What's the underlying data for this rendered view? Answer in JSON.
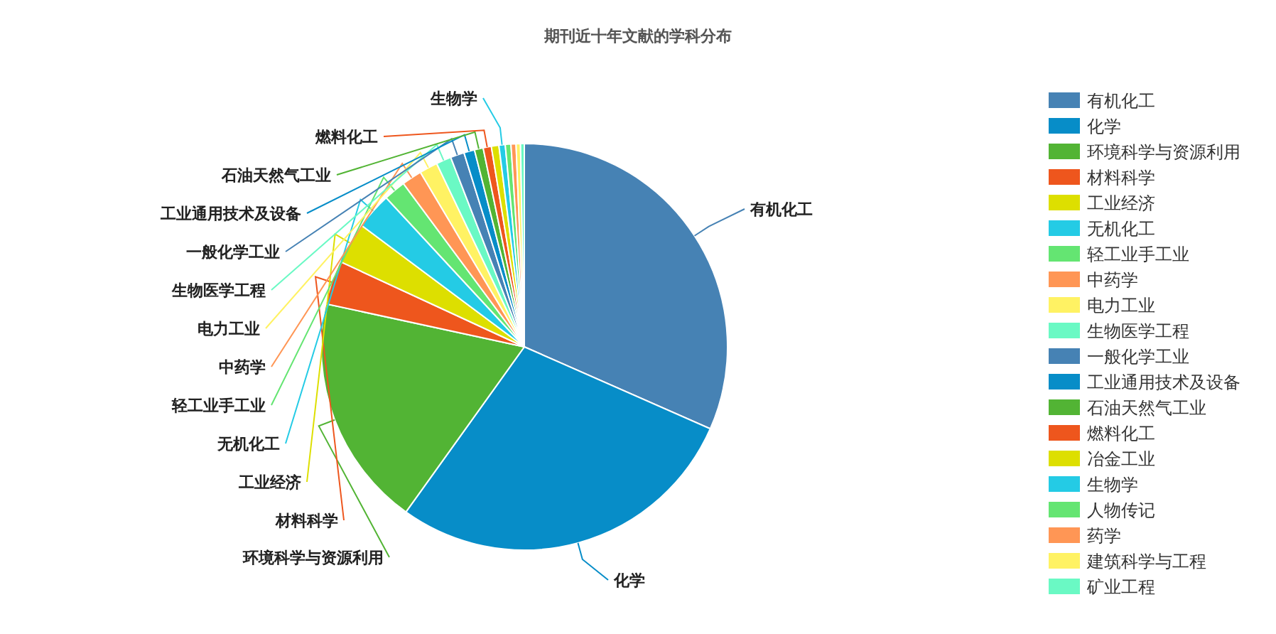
{
  "chart_data": {
    "type": "pie",
    "title": "期刊近十年文献的学科分布",
    "legend": "right",
    "categories": [
      "有机化工",
      "化学",
      "环境科学与资源利用",
      "材料科学",
      "工业经济",
      "无机化工",
      "轻工业手工业",
      "中药学",
      "电力工业",
      "生物医学工程",
      "一般化学工业",
      "工业通用技术及设备",
      "石油天然气工业",
      "燃料化工",
      "冶金工业",
      "生物学",
      "人物传记",
      "药学",
      "建筑科学与工程",
      "矿业工程"
    ],
    "values": [
      31.6,
      28.3,
      18.5,
      3.5,
      3.3,
      2.9,
      1.75,
      1.6,
      1.45,
      1.2,
      1.1,
      0.85,
      0.7,
      0.65,
      0.6,
      0.5,
      0.45,
      0.4,
      0.35,
      0.3
    ],
    "colors": [
      "#4682b4",
      "#078dc8",
      "#52b434",
      "#ee561d",
      "#dddf00",
      "#24cbe5",
      "#64e572",
      "#ff9655",
      "#fff263",
      "#6af9c4",
      "#4682b4",
      "#078dc8",
      "#52b434",
      "#ee561d",
      "#dddf00",
      "#24cbe5",
      "#64e572",
      "#ff9655",
      "#fff263",
      "#6af9c4"
    ]
  }
}
